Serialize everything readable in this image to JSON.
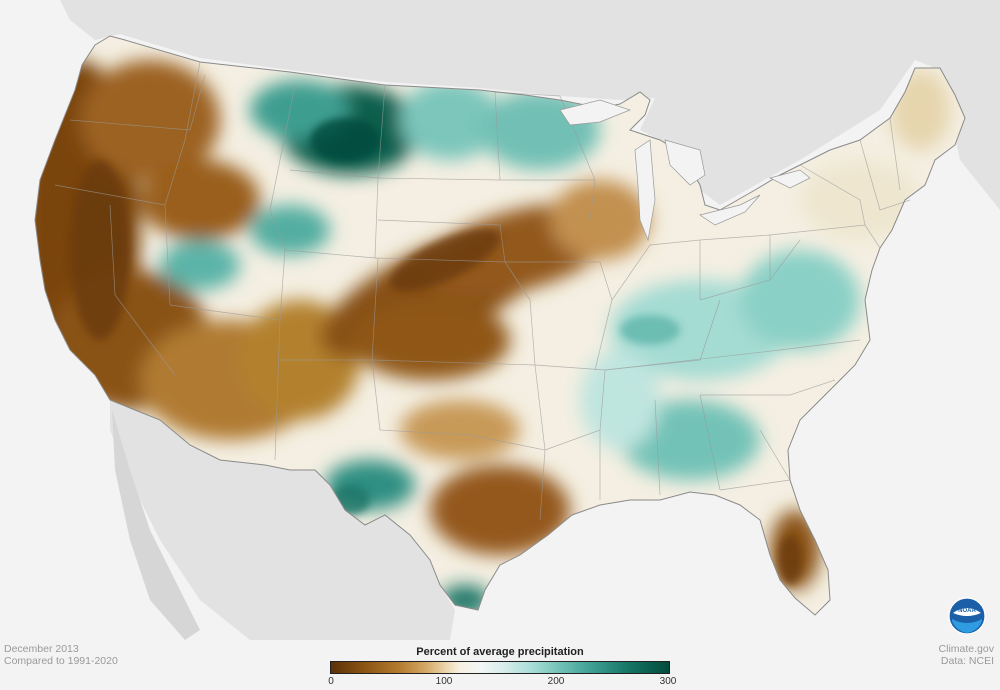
{
  "map": {
    "region": "Contiguous United States",
    "variable": "Percent of average precipitation",
    "color_scale": {
      "dry": "#5a3208",
      "near_normal": "#f4f7f6",
      "wet": "#024b3c"
    }
  },
  "legend": {
    "title": "Percent of average precipitation",
    "ticks": [
      "0",
      "100",
      "200",
      "300"
    ]
  },
  "footer": {
    "date": "December 2013",
    "comparison": "Compared to 1991-2020",
    "source_site": "Climate.gov",
    "source_data": "Data: NCEI"
  },
  "logo": {
    "icon": "noaa-logo-icon",
    "text": "NOAA"
  }
}
